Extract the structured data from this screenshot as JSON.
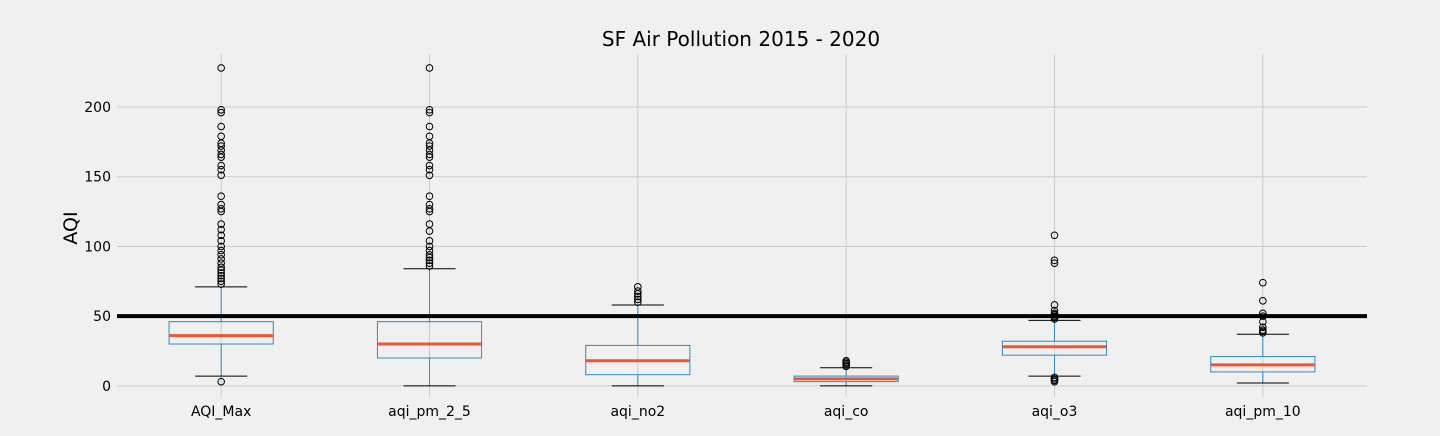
{
  "chart_data": {
    "type": "box",
    "title": "SF Air Pollution 2015 - 2020",
    "xlabel": "",
    "ylabel": "AQI",
    "ylim": [
      -8,
      238
    ],
    "yticks": [
      0,
      50,
      100,
      150,
      200
    ],
    "grid": true,
    "reference_line": {
      "y": 50,
      "color": "#000000"
    },
    "colors": {
      "box": "#2a8bc6",
      "median": "#ee5533",
      "whisker_cap": "#000000",
      "flier": "#000000",
      "grid": "#cbcbcb",
      "background": "#f0f0f0"
    },
    "categories": [
      "AQI_Max",
      "aqi_pm_2_5",
      "aqi_no2",
      "aqi_co",
      "aqi_o3",
      "aqi_pm_10"
    ],
    "boxes": [
      {
        "name": "AQI_Max",
        "whisker_low": 7,
        "q1": 30,
        "median": 36,
        "q3": 46,
        "whisker_high": 71,
        "fliers": [
          3,
          73,
          75,
          77,
          79,
          81,
          83,
          85,
          88,
          91,
          94,
          97,
          100,
          104,
          108,
          112,
          116,
          125,
          127,
          130,
          136,
          151,
          155,
          158,
          164,
          166,
          169,
          172,
          174,
          179,
          186,
          196,
          198,
          228
        ]
      },
      {
        "name": "aqi_pm_2_5",
        "whisker_low": 0,
        "q1": 20,
        "median": 30,
        "q3": 46,
        "whisker_high": 84,
        "fliers": [
          86,
          88,
          90,
          92,
          94,
          97,
          100,
          104,
          111,
          116,
          125,
          127,
          130,
          136,
          151,
          155,
          158,
          164,
          166,
          169,
          172,
          174,
          179,
          186,
          196,
          198,
          228
        ]
      },
      {
        "name": "aqi_no2",
        "whisker_low": 0,
        "q1": 8,
        "median": 18,
        "q3": 29,
        "whisker_high": 58,
        "fliers": [
          60,
          62,
          64,
          66,
          68,
          71
        ]
      },
      {
        "name": "aqi_co",
        "whisker_low": 0,
        "q1": 3,
        "median": 5,
        "q3": 7,
        "whisker_high": 13,
        "fliers": [
          14,
          15,
          16,
          17,
          18
        ]
      },
      {
        "name": "aqi_o3",
        "whisker_low": 7,
        "q1": 22,
        "median": 28,
        "q3": 32,
        "whisker_high": 47,
        "fliers": [
          3,
          4,
          5,
          6,
          48,
          49,
          50,
          51,
          52,
          54,
          58,
          88,
          90,
          108
        ]
      },
      {
        "name": "aqi_pm_10",
        "whisker_low": 2,
        "q1": 10,
        "median": 15,
        "q3": 21,
        "whisker_high": 37,
        "fliers": [
          38,
          39,
          40,
          42,
          46,
          50,
          52,
          61,
          74
        ]
      }
    ]
  }
}
